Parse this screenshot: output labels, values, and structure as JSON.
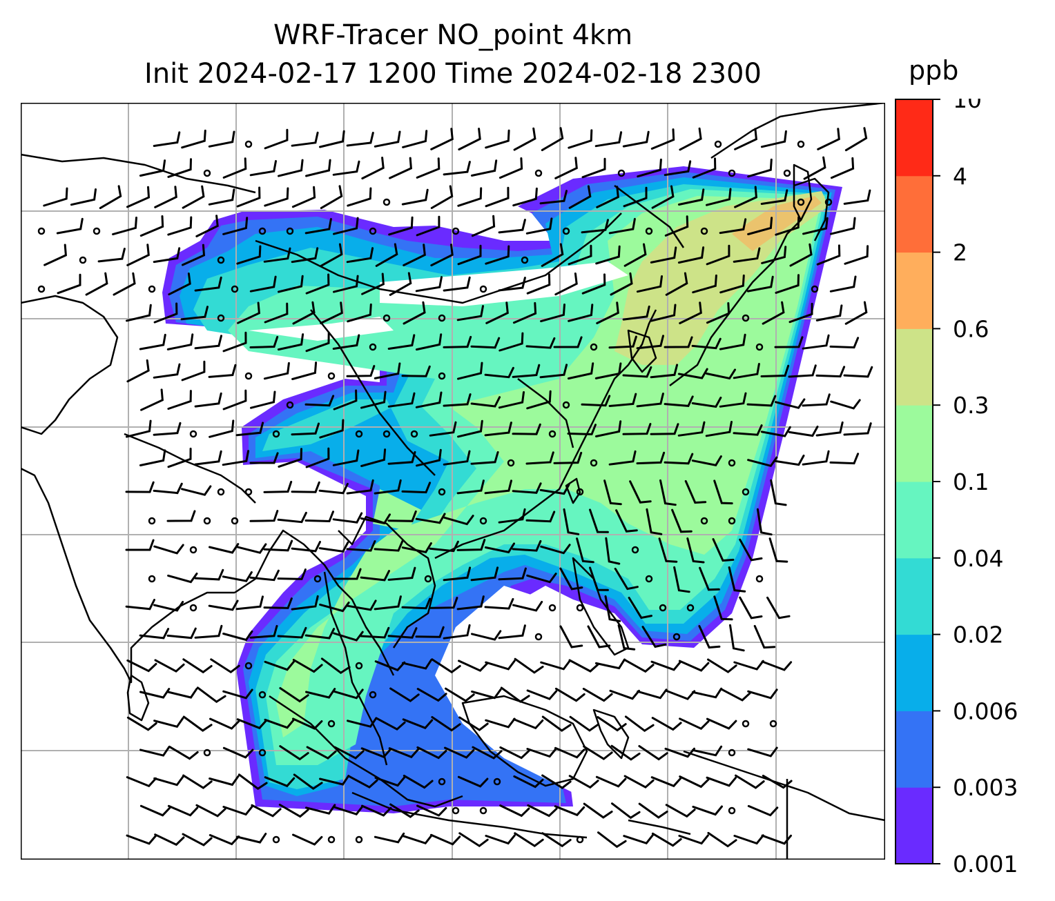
{
  "title": {
    "line1": "WRF-Tracer NO_point 4km",
    "line2": "Init 2024-02-17 1200 Time 2024-02-18 2300"
  },
  "colorbar": {
    "unit": "ppb",
    "tick_labels": [
      "0.001",
      "0.003",
      "0.006",
      "0.02",
      "0.04",
      "0.1",
      "0.3",
      "0.6",
      "2",
      "4",
      "10"
    ],
    "colors": [
      "#6a2bff",
      "#3473f5",
      "#08aeea",
      "#33dbd4",
      "#66f5c0",
      "#9cfa9c",
      "#cde388",
      "#ffae5c",
      "#ff6e39",
      "#ff2a17"
    ]
  },
  "map": {
    "gridlines": true,
    "region": "East Asia / Western Pacific",
    "layers": [
      "tracer concentration fill",
      "wind barbs",
      "coastlines"
    ]
  }
}
